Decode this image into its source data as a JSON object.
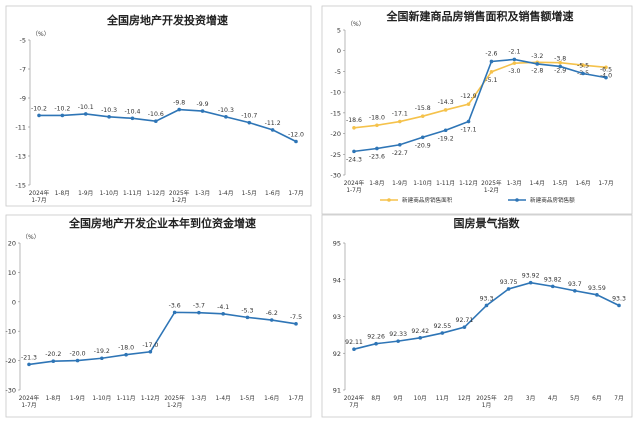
{
  "chart_data": [
    {
      "type": "line",
      "title": "全国房地产开发投资增速",
      "unit": "（%）",
      "categories": [
        "2024年\n1-7月",
        "1-8月",
        "1-9月",
        "1-10月",
        "1-11月",
        "1-12月",
        "2025年\n1-2月",
        "1-3月",
        "1-4月",
        "1-5月",
        "1-6月",
        "1-7月"
      ],
      "ylim": [
        -15,
        -5
      ],
      "yticks": [
        -5,
        -7,
        -9,
        -11,
        -13,
        -15
      ],
      "series": [
        {
          "values": [
            -10.2,
            -10.2,
            -10.1,
            -10.3,
            -10.4,
            -10.6,
            -9.8,
            -9.9,
            -10.3,
            -10.7,
            -11.2,
            -12.0
          ],
          "color": "#2e75b6"
        }
      ],
      "grid": false
    },
    {
      "type": "line",
      "title": "全国新建商品房销售面积及销售额增速",
      "unit": "（%）",
      "categories": [
        "2024年\n1-7月",
        "1-8月",
        "1-9月",
        "1-10月",
        "1-11月",
        "1-12月",
        "2025年\n1-2月",
        "1-3月",
        "1-4月",
        "1-5月",
        "1-6月",
        "1-7月"
      ],
      "ylim": [
        -30,
        5
      ],
      "yticks": [
        5,
        0,
        -5,
        -10,
        -15,
        -20,
        -25,
        -30
      ],
      "series": [
        {
          "name": "新建商品房销售面积",
          "values": [
            -18.6,
            -18.0,
            -17.1,
            -15.8,
            -14.3,
            -12.9,
            -5.1,
            -3.0,
            -2.8,
            -2.9,
            -3.5,
            -4.0
          ],
          "color": "#f5c24b"
        },
        {
          "name": "新建商品房销售额",
          "values": [
            -24.3,
            -23.6,
            -22.7,
            -20.9,
            -19.2,
            -17.1,
            -2.6,
            -2.1,
            -3.2,
            -3.8,
            -5.5,
            -6.5
          ],
          "color": "#2e75b6"
        }
      ],
      "legend": "bottom",
      "grid": false
    },
    {
      "type": "line",
      "title": "全国房地产开发企业本年到位资金增速",
      "unit": "（%）",
      "categories": [
        "2024年\n1-7月",
        "1-8月",
        "1-9月",
        "1-10月",
        "1-11月",
        "1-12月",
        "2025年\n1-2月",
        "1-3月",
        "1-4月",
        "1-5月",
        "1-6月",
        "1-7月"
      ],
      "ylim": [
        -30,
        20
      ],
      "yticks": [
        20,
        10,
        0,
        -10,
        -20,
        -30
      ],
      "series": [
        {
          "values": [
            -21.3,
            -20.2,
            -20.0,
            -19.2,
            -18.0,
            -17.0,
            -3.6,
            -3.7,
            -4.1,
            -5.3,
            -6.2,
            -7.5
          ],
          "color": "#2e75b6"
        }
      ],
      "grid": false
    },
    {
      "type": "line",
      "title": "国房景气指数",
      "categories": [
        "2024年\n7月",
        "8月",
        "9月",
        "10月",
        "11月",
        "12月",
        "2025年\n1月",
        "2月",
        "3月",
        "4月",
        "5月",
        "6月",
        "7月"
      ],
      "ylim": [
        91,
        95
      ],
      "yticks": [
        95,
        94,
        93,
        92,
        91
      ],
      "series": [
        {
          "values": [
            92.11,
            92.26,
            92.33,
            92.42,
            92.55,
            92.71,
            93.3,
            93.75,
            93.92,
            93.82,
            93.7,
            93.59,
            93.3
          ],
          "color": "#2e75b6"
        }
      ],
      "grid": false
    }
  ]
}
